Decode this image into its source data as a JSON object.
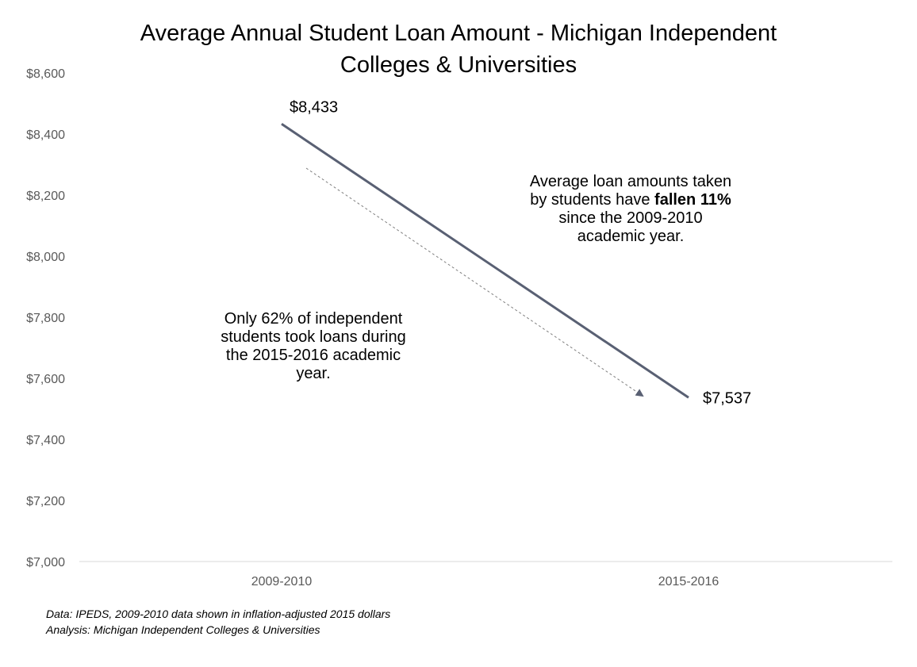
{
  "chart_data": {
    "type": "line",
    "title_lines": [
      "Average Annual Student Loan Amount - Michigan Independent",
      "Colleges & Universities"
    ],
    "categories": [
      "2009-2010",
      "2015-2016"
    ],
    "series": [
      {
        "values": [
          8433,
          7537
        ],
        "labels": [
          "$8,433",
          "$7,537"
        ],
        "color": "#596073"
      }
    ],
    "ylim": [
      7000,
      8600
    ],
    "yticks": [
      7000,
      7200,
      7400,
      7600,
      7800,
      8000,
      8200,
      8400,
      8600
    ],
    "ytick_labels": [
      "$7,000",
      "$7,200",
      "$7,400",
      "$7,600",
      "$7,800",
      "$8,000",
      "$8,200",
      "$8,400",
      "$8,600"
    ],
    "grid": false,
    "legend": "none",
    "colors": {
      "line": "#596073",
      "axis": "#d9d9d9",
      "tick_text": "#595959",
      "arrow": "#596073"
    },
    "annotations": {
      "right": {
        "line1": "Average loan amounts taken",
        "line2_pre": "by students have ",
        "line2_bold": "fallen 11%",
        "line3": "since the 2009-2010",
        "line4": "academic year."
      },
      "left": {
        "line1": "Only 62% of independent",
        "line2": "students took loans during",
        "line3": "the 2015-2016 academic",
        "line4": "year."
      }
    },
    "source": {
      "line1": "Data: IPEDS, 2009-2010 data shown in inflation-adjusted 2015 dollars",
      "line2": "Analysis: Michigan Independent Colleges & Universities"
    }
  }
}
